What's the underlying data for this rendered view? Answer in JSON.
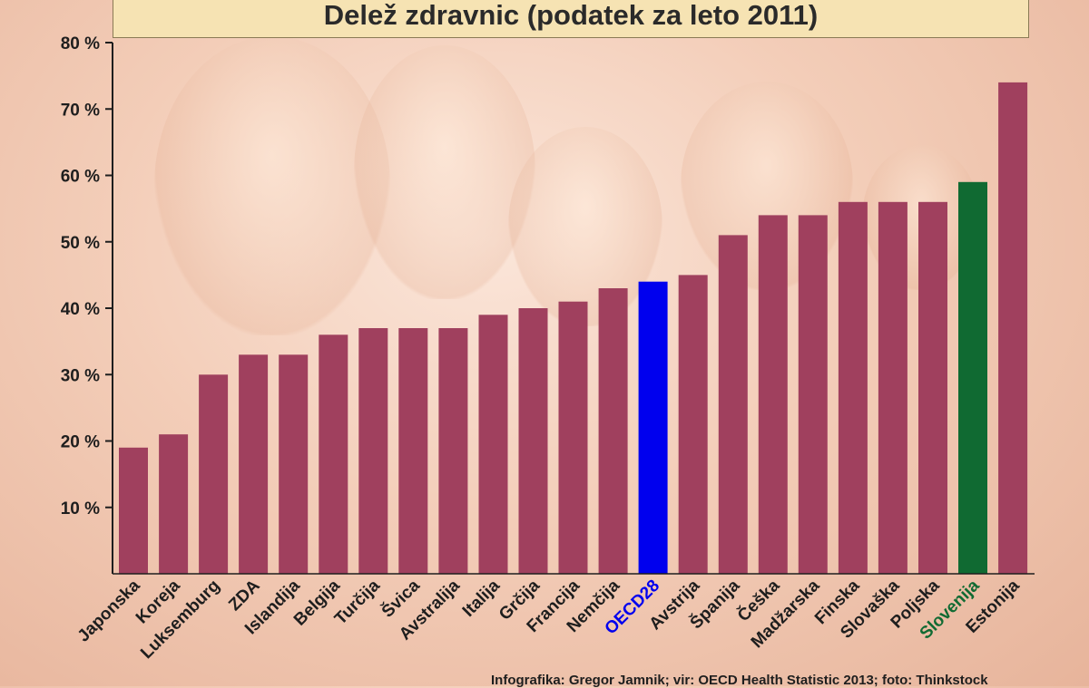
{
  "title": "Delež zdravnic (podatek za leto 2011)",
  "footer": "Infografika: Gregor Jamnik; vir: OECD Health Statistic 2013; foto: Thinkstock",
  "colors": {
    "bar": "#a0405e",
    "highlight_oecd": "#0000ee",
    "highlight_slovenia": "#106a32",
    "text": "#1e1e1e"
  },
  "chart_data": {
    "type": "bar",
    "title": "Delež zdravnic (podatek za leto 2011)",
    "xlabel": "",
    "ylabel": "",
    "ylim": [
      0,
      80
    ],
    "yticks": [
      10,
      20,
      30,
      40,
      50,
      60,
      70,
      80
    ],
    "ytick_labels": [
      "10 %",
      "20 %",
      "30 %",
      "40 %",
      "50 %",
      "60 %",
      "70 %",
      "80 %"
    ],
    "categories": [
      "Japonska",
      "Koreja",
      "Luksemburg",
      "ZDA",
      "Islandija",
      "Belgija",
      "Turčija",
      "Švica",
      "Avstralija",
      "Italija",
      "Grčija",
      "Francija",
      "Nemčija",
      "OECD28",
      "Avstrija",
      "Španija",
      "Češka",
      "Madžarska",
      "Finska",
      "Slovaška",
      "Poljska",
      "Slovenija",
      "Estonija"
    ],
    "values": [
      19,
      21,
      30,
      33,
      33,
      36,
      37,
      37,
      37,
      39,
      40,
      41,
      43,
      44,
      45,
      51,
      54,
      54,
      56,
      56,
      56,
      59,
      74
    ],
    "highlights": {
      "OECD28": "highlight_oecd",
      "Slovenija": "highlight_slovenia"
    },
    "grid": false,
    "legend": "none"
  }
}
